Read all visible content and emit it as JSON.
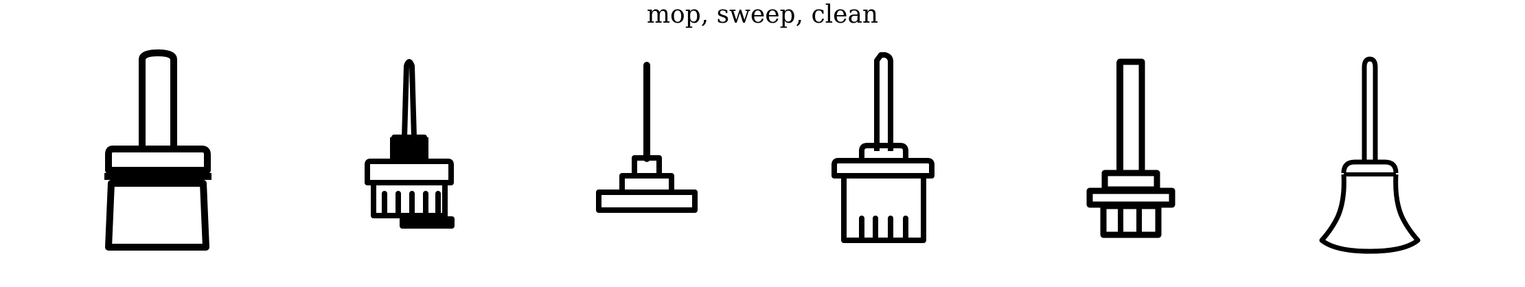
{
  "title": "mop, sweep, clean",
  "icons": [
    {
      "name": "paintbrush-icon"
    },
    {
      "name": "narrow-brush-icon"
    },
    {
      "name": "floor-mop-icon"
    },
    {
      "name": "cleaning-broom-icon"
    },
    {
      "name": "stick-brush-icon"
    },
    {
      "name": "sweeping-broom-icon"
    }
  ],
  "colors": {
    "ink": "#000000",
    "background": "#ffffff"
  }
}
